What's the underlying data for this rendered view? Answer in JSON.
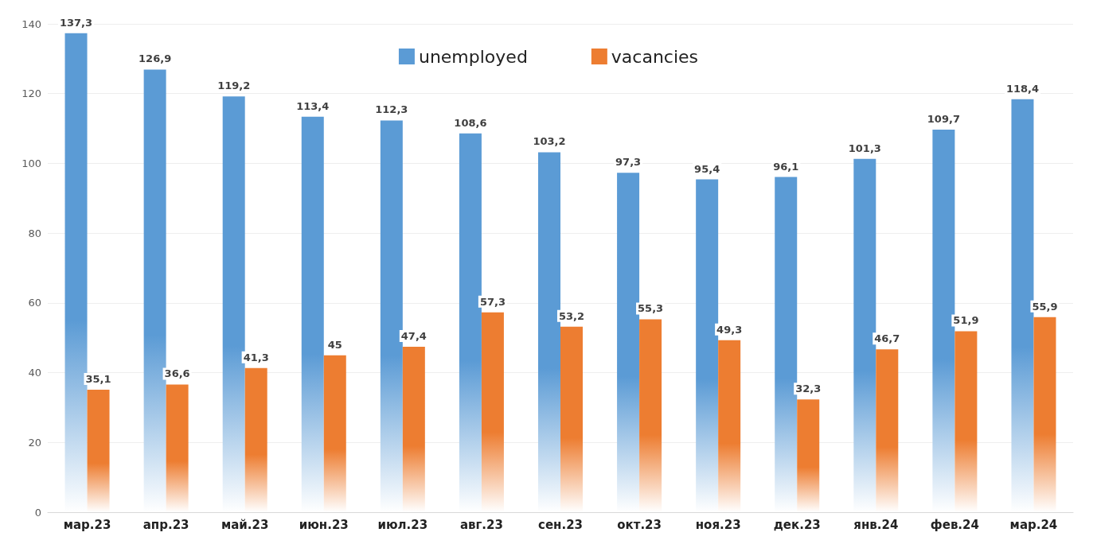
{
  "chart_data": {
    "type": "bar",
    "categories": [
      "мар.23",
      "апр.23",
      "май.23",
      "июн.23",
      "июл.23",
      "авг.23",
      "сен.23",
      "окт.23",
      "ноя.23",
      "дек.23",
      "янв.24",
      "фев.24",
      "мар.24"
    ],
    "series": [
      {
        "name": "unemployed",
        "color": "#5b9bd5",
        "values": [
          137.3,
          126.9,
          119.2,
          113.4,
          112.3,
          108.6,
          103.2,
          97.3,
          95.4,
          96.1,
          101.3,
          109.7,
          118.4
        ],
        "value_labels": [
          "137,3",
          "126,9",
          "119,2",
          "113,4",
          "112,3",
          "108,6",
          "103,2",
          "97,3",
          "95,4",
          "96,1",
          "101,3",
          "109,7",
          "118,4"
        ]
      },
      {
        "name": "vacancies",
        "color": "#ed7d31",
        "values": [
          35.1,
          36.6,
          41.3,
          45,
          47.4,
          57.3,
          53.2,
          55.3,
          49.3,
          32.3,
          46.7,
          51.9,
          55.9
        ],
        "value_labels": [
          "35,1",
          "36,6",
          "41,3",
          "45",
          "47,4",
          "57,3",
          "53,2",
          "55,3",
          "49,3",
          "32,3",
          "46,7",
          "51,9",
          "55,9"
        ]
      }
    ],
    "ylim": [
      0,
      140
    ],
    "yticks": [
      0,
      20,
      40,
      60,
      80,
      100,
      120,
      140
    ],
    "grid": "y",
    "legend": "top"
  }
}
